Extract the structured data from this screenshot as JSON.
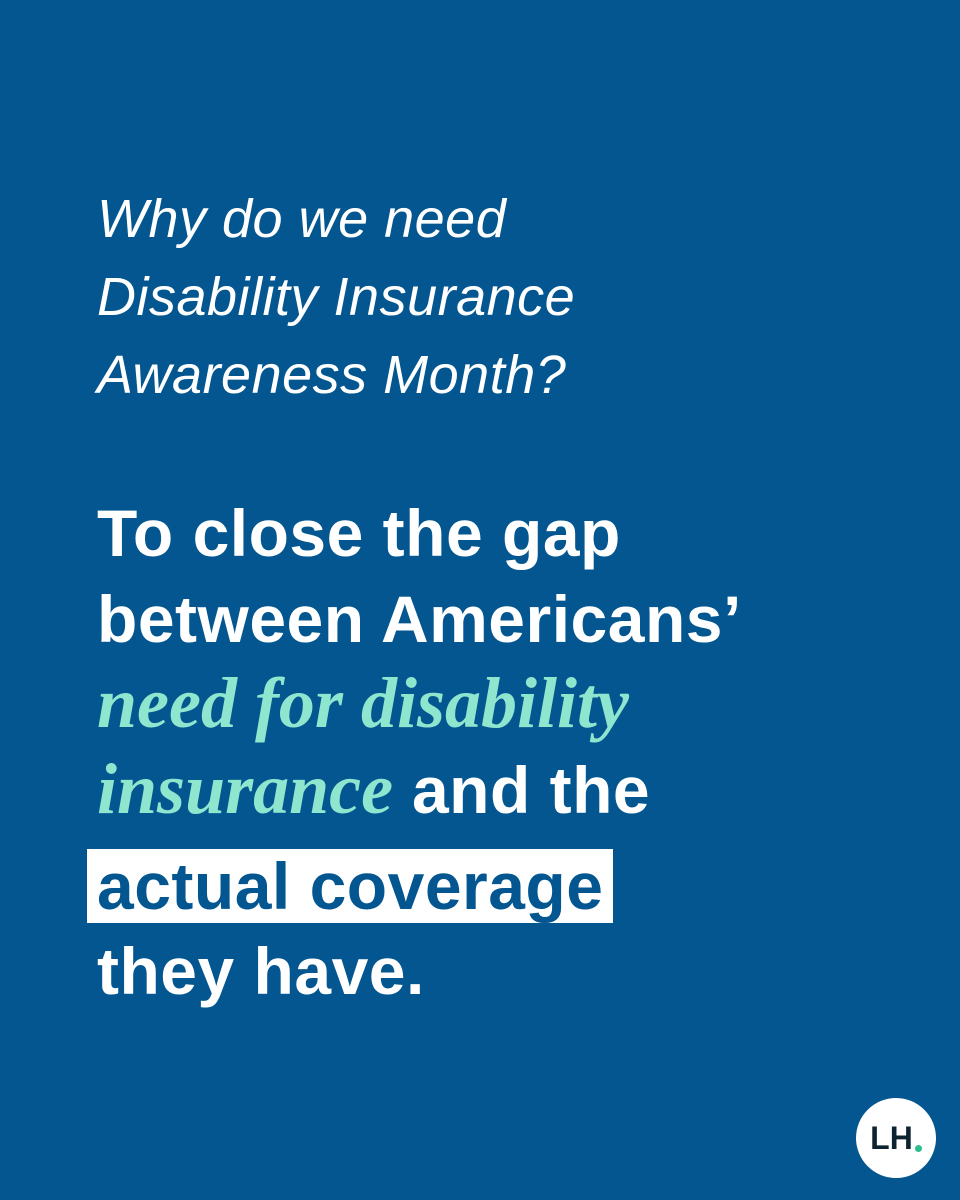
{
  "question": {
    "lines": [
      "Why do we need",
      "Disability Insurance",
      "Awareness Month?"
    ]
  },
  "answer": {
    "lines": [
      "To close the gap",
      "between Americans’",
      "need for disability",
      "insurance",
      "and the",
      "actual coverage",
      "they have."
    ]
  },
  "logo": "LH"
}
